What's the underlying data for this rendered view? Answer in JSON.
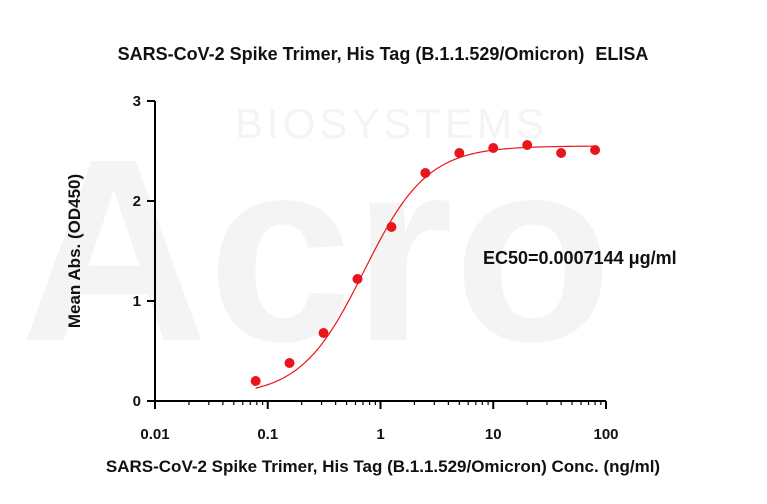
{
  "watermark": {
    "brand": "Acro",
    "sub": "BIOSYSTEMS"
  },
  "chart_data": {
    "type": "scatter",
    "title": "SARS-CoV-2 Spike Trimer, His Tag (B.1.1.529/Omicron)",
    "title_suffix": "ELISA",
    "xlabel": "SARS-CoV-2 Spike Trimer, His Tag (B.1.1.529/Omicron) Conc. (ng/ml)",
    "ylabel": "Mean Abs. (OD450)",
    "xscale": "log",
    "xlim": [
      0.01,
      100
    ],
    "ylim": [
      0,
      3
    ],
    "x_ticks": [
      0.01,
      0.1,
      1,
      10,
      100
    ],
    "x_tick_labels": [
      "0.01",
      "0.1",
      "1",
      "10",
      "100"
    ],
    "y_ticks": [
      0,
      1,
      2,
      3
    ],
    "y_tick_labels": [
      "0",
      "1",
      "2",
      "3"
    ],
    "grid": false,
    "series": [
      {
        "color": "#e8161c",
        "x": [
          0.0781,
          0.156,
          0.3125,
          0.625,
          1.25,
          2.5,
          5,
          10,
          20,
          40,
          80
        ],
        "y": [
          0.2,
          0.38,
          0.68,
          1.22,
          1.74,
          2.28,
          2.48,
          2.53,
          2.56,
          2.48,
          2.51
        ]
      }
    ],
    "fit_curve": {
      "color": "#e8161c",
      "bottom": 0.05,
      "top": 2.55,
      "ec50": 0.7144,
      "hill": 1.55
    },
    "annotation": "EC50=0.0007144 μg/ml"
  }
}
